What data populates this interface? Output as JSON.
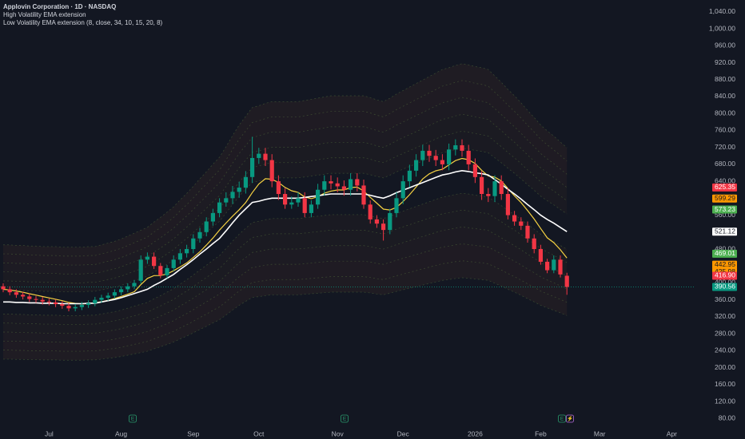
{
  "chart_data": {
    "type": "candlestick",
    "title": "Applovin Corporation · 1D · NASDAQ",
    "subtitle": "High Volatility EMA extension",
    "indicator": "Low Volatility EMA extension (8, close, 34, 10, 15, 20, 8)",
    "categories": [
      null,
      null,
      null,
      null,
      null,
      null,
      null,
      "Jul",
      null,
      null,
      null,
      null,
      null,
      null,
      null,
      null,
      null,
      null,
      "Aug",
      null,
      null,
      null,
      null,
      null,
      null,
      null,
      null,
      null,
      null,
      "Sep",
      null,
      null,
      null,
      null,
      null,
      null,
      null,
      null,
      null,
      "Oct",
      null,
      null,
      null,
      null,
      null,
      null,
      null,
      null,
      null,
      null,
      null,
      "Nov",
      null,
      null,
      null,
      null,
      null,
      null,
      null,
      null,
      null,
      "Dec",
      null,
      null,
      null,
      null,
      null,
      null,
      null,
      null,
      null,
      null,
      "2026",
      null,
      null,
      null,
      null,
      null,
      null,
      null,
      null,
      null,
      "Feb",
      null,
      null,
      null,
      null,
      null,
      null,
      null,
      null,
      "Mar",
      null,
      null,
      null,
      null,
      null,
      null,
      null,
      null,
      null,
      null,
      "Apr",
      null,
      null,
      null
    ],
    "open": [
      392,
      385,
      378,
      372,
      368,
      362,
      360,
      356,
      354,
      350,
      346,
      340,
      343,
      348,
      352,
      360,
      365,
      370,
      378,
      385,
      392,
      405,
      455,
      462,
      440,
      418,
      435,
      455,
      470,
      480,
      505,
      520,
      545,
      565,
      590,
      600,
      615,
      625,
      650,
      695,
      705,
      690,
      640,
      610,
      585,
      590,
      600,
      565,
      585,
      620,
      640,
      635,
      628,
      620,
      645,
      630,
      585,
      550,
      540,
      525,
      565,
      600,
      640,
      665,
      690,
      712,
      700,
      690,
      680,
      715,
      725,
      712,
      680,
      650,
      610,
      605,
      640,
      610,
      560,
      545,
      535,
      505,
      480,
      450,
      430,
      455,
      416.9,
      null,
      null,
      null,
      null,
      null,
      null,
      null,
      null,
      null,
      null,
      null,
      null,
      null,
      null,
      null,
      null,
      null,
      null,
      null
    ],
    "high": [
      399,
      392,
      385,
      379,
      375,
      369,
      367,
      363,
      361,
      357,
      353,
      350,
      355,
      359,
      367,
      372,
      377,
      385,
      392,
      399,
      407,
      465,
      472,
      472,
      447,
      442,
      465,
      480,
      490,
      515,
      530,
      555,
      575,
      600,
      614,
      629,
      639,
      664,
      745,
      719,
      719,
      704,
      654,
      624,
      604,
      614,
      614,
      595,
      634,
      654,
      654,
      649,
      642,
      659,
      659,
      644,
      595,
      560,
      550,
      575,
      614,
      654,
      679,
      704,
      726,
      726,
      714,
      704,
      729,
      739,
      739,
      726,
      694,
      664,
      624,
      654,
      654,
      624,
      570,
      555,
      545,
      515,
      490,
      457,
      465,
      465,
      424,
      null,
      null,
      null,
      null,
      null,
      null,
      null,
      null,
      null,
      null,
      null,
      null,
      null,
      null,
      null,
      null,
      null,
      null,
      null
    ],
    "low": [
      378,
      371,
      365,
      361,
      355,
      353,
      349,
      347,
      343,
      339,
      333,
      333,
      336,
      341,
      345,
      353,
      358,
      363,
      371,
      378,
      385,
      398,
      445,
      433,
      411,
      411,
      428,
      445,
      460,
      470,
      495,
      510,
      535,
      555,
      580,
      586,
      601,
      611,
      636,
      681,
      676,
      626,
      596,
      575,
      575,
      580,
      555,
      555,
      575,
      606,
      621,
      614,
      606,
      606,
      616,
      575,
      540,
      530,
      500,
      515,
      555,
      586,
      626,
      651,
      676,
      686,
      676,
      666,
      666,
      701,
      698,
      666,
      636,
      596,
      591,
      591,
      596,
      550,
      535,
      525,
      495,
      470,
      443,
      423,
      423,
      413,
      372,
      null,
      null,
      null,
      null,
      null,
      null,
      null,
      null,
      null,
      null,
      null,
      null,
      null,
      null,
      null,
      null,
      null,
      null,
      null
    ],
    "close": [
      385,
      378,
      372,
      368,
      362,
      360,
      356,
      354,
      350,
      346,
      340,
      343,
      348,
      352,
      360,
      365,
      370,
      378,
      385,
      392,
      400,
      455,
      462,
      440,
      418,
      435,
      455,
      470,
      480,
      505,
      520,
      545,
      565,
      590,
      600,
      615,
      625,
      650,
      695,
      705,
      690,
      640,
      610,
      585,
      590,
      600,
      565,
      585,
      620,
      640,
      635,
      628,
      620,
      645,
      630,
      585,
      550,
      540,
      525,
      565,
      600,
      640,
      665,
      690,
      712,
      700,
      690,
      680,
      715,
      725,
      712,
      680,
      650,
      610,
      605,
      640,
      610,
      560,
      545,
      535,
      505,
      480,
      450,
      430,
      455,
      420,
      390.56,
      null,
      null,
      null,
      null,
      null,
      null,
      null,
      null,
      null,
      null,
      null,
      null,
      null,
      null,
      null,
      null,
      null,
      null,
      null
    ],
    "up_color": "#089981",
    "down_color": "#f23645",
    "lines": [
      {
        "color": "#f5d142",
        "values": [
          385,
          383.4,
          380.9,
          378,
          374.4,
          371.2,
          367.8,
          364.7,
          361.4,
          358,
          354,
          351.6,
          350.8,
          351.1,
          353.1,
          355.7,
          358.9,
          363.1,
          368,
          373.3,
          379.2,
          396,
          410.7,
          417.2,
          417.4,
          421.3,
          428.8,
          437.9,
          447.3,
          460.1,
          473.4,
          489.3,
          506.1,
          524.7,
          541.4,
          557.7,
          572.7,
          589.8,
          613.2,
          633.6,
          646.1,
          644.7,
          637,
          625.5,
          617.6,
          613.7,
          602.9,
          598.9,
          603.6,
          611.7,
          616.9,
          619.4,
          619.5,
          625.2,
          626.3,
          617.1,
          602.2,
          588.4,
          574.3,
          572.2,
          578.4,
          592.1,
          608.3,
          626.5,
          645.5,
          657.6,
          664.8,
          668.2,
          678.6,
          688.9,
          694,
          690.9,
          681.8,
          665.9,
          652.4,
          649.6,
          640.8,
          622.9,
          605.6,
          589.9,
          571.1,
          550.9,
          528.5,
          506.6,
          495.1,
          478.4,
          458.9,
          null,
          null,
          null,
          null,
          null,
          null,
          null,
          null,
          null,
          null,
          null,
          null,
          null,
          null,
          null,
          null,
          null,
          null,
          null
        ]
      },
      {
        "color": "#ffffff",
        "values": [
          355,
          355,
          354,
          354,
          353,
          353,
          352,
          352,
          352,
          351,
          351,
          351,
          351,
          352,
          352,
          355,
          358,
          361,
          365,
          370,
          375,
          380,
          385,
          394,
          402,
          411,
          420,
          432,
          443,
          455,
          468,
          480,
          493,
          505,
          523,
          542,
          560,
          575,
          590,
          593,
          597,
          600,
          600,
          600,
          600,
          600,
          602,
          604,
          606,
          608,
          610,
          610,
          610,
          610,
          610,
          610,
          607,
          603,
          600,
          606,
          613,
          619,
          625,
          631,
          637,
          643,
          649,
          655,
          658,
          662,
          665,
          663,
          660,
          658,
          655,
          644,
          633,
          621,
          610,
          598,
          585,
          573,
          560,
          550,
          541,
          531,
          521.12,
          null,
          null,
          null,
          null,
          null,
          null,
          null,
          null,
          null,
          null,
          null,
          null,
          null,
          null,
          null,
          null,
          null,
          null,
          null
        ]
      }
    ],
    "bands_pct": [
      8,
      14,
      20,
      26,
      32,
      38
    ],
    "band_fill": "#8a4a2e",
    "band_edge": "#4f6b3c",
    "ylim": [
      56,
      1068
    ],
    "yticks": [
      {
        "value": 80,
        "label": "80.00"
      },
      {
        "value": 120,
        "label": "120.00"
      },
      {
        "value": 160,
        "label": "160.00"
      },
      {
        "value": 200,
        "label": "200.00"
      },
      {
        "value": 240,
        "label": "240.00"
      },
      {
        "value": 280,
        "label": "280.00"
      },
      {
        "value": 320,
        "label": "320.00"
      },
      {
        "value": 360,
        "label": "360.00"
      },
      {
        "value": 400,
        "label": "400.00"
      },
      {
        "value": 440,
        "label": "440.00"
      },
      {
        "value": 480,
        "label": "480.00"
      },
      {
        "value": 520,
        "label": "520.00"
      },
      {
        "value": 560,
        "label": "560.00"
      },
      {
        "value": 600,
        "label": "600.00"
      },
      {
        "value": 640,
        "label": "640.00"
      },
      {
        "value": 680,
        "label": "680.00"
      },
      {
        "value": 720,
        "label": "720.00"
      },
      {
        "value": 760,
        "label": "760.00"
      },
      {
        "value": 800,
        "label": "800.00"
      },
      {
        "value": 840,
        "label": "840.00"
      },
      {
        "value": 880,
        "label": "880.00"
      },
      {
        "value": 920,
        "label": "920.00"
      },
      {
        "value": 960,
        "label": "960.00"
      },
      {
        "value": 1000,
        "label": "1,000.00"
      },
      {
        "value": 1040,
        "label": "1,040.00"
      }
    ],
    "grid": false,
    "price_labels": [
      {
        "value": 625.35,
        "color": "#f23645",
        "text_color": "#ffffff"
      },
      {
        "value": 599.29,
        "color": "#ff9800",
        "text_color": "#131722"
      },
      {
        "value": 573.23,
        "color": "#4caf50",
        "text_color": "#ffffff"
      },
      {
        "value": 521.12,
        "color": "#ffffff",
        "text_color": "#131722"
      },
      {
        "value": 469.01,
        "color": "#4caf50",
        "text_color": "#ffffff"
      },
      {
        "value": 442.95,
        "color": "#ff9800",
        "text_color": "#131722"
      },
      {
        "value": 425.98,
        "color": "#ff9800",
        "text_color": "#131722"
      },
      {
        "value": 416.9,
        "label": "416.90",
        "color": "#f23645",
        "text_color": "#ffffff"
      },
      {
        "value": 390.56,
        "color": "#089981",
        "text_color": "#ffffff"
      }
    ],
    "events": [
      "E",
      "E",
      "E",
      "⚡"
    ]
  }
}
